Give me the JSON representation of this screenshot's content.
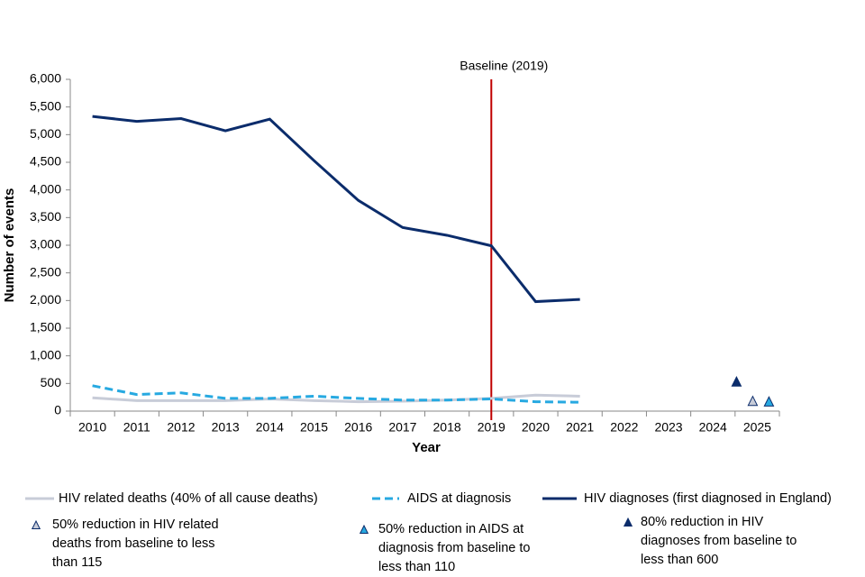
{
  "chart_data": {
    "type": "line",
    "categories": [
      "2010",
      "2011",
      "2012",
      "2013",
      "2014",
      "2015",
      "2016",
      "2017",
      "2018",
      "2019",
      "2020",
      "2021",
      "2022",
      "2023",
      "2024",
      "2025"
    ],
    "ylim": [
      0,
      6000
    ],
    "yticks": [
      0,
      500,
      {
        "value": 1000,
        "label": "1,000"
      },
      {
        "value": 1500,
        "label": "1,500"
      },
      {
        "value": 2000,
        "label": "2,000"
      },
      {
        "value": 2500,
        "label": "2,500"
      },
      {
        "value": 3000,
        "label": "3,000"
      },
      {
        "value": 3500,
        "label": "3,500"
      },
      {
        "value": 4000,
        "label": "4,000"
      },
      {
        "value": 4500,
        "label": "4,500"
      },
      {
        "value": 5000,
        "label": "5,000"
      },
      {
        "value": 5500,
        "label": "5,500"
      },
      {
        "value": 6000,
        "label": "6,000"
      }
    ],
    "y_label": "Number of events",
    "x_label": "Year",
    "baseline_label": "Baseline (2019)",
    "baseline_color": "#c00000",
    "series": [
      {
        "name": "HIV related deaths (40% of all cause deaths)",
        "color": "#c8ccd8",
        "style": "solid",
        "values": [
          240,
          190,
          190,
          190,
          220,
          190,
          170,
          180,
          200,
          230,
          290,
          270,
          null,
          null,
          null,
          null
        ]
      },
      {
        "name": "AIDS at diagnosis",
        "color": "#27a9e1",
        "style": "dashed",
        "values": [
          460,
          300,
          330,
          230,
          230,
          270,
          230,
          200,
          200,
          220,
          170,
          160,
          null,
          null,
          null,
          null
        ]
      },
      {
        "name": "HIV diagnoses (first diagnosed in England)",
        "color": "#0b2c6b",
        "style": "solid",
        "values": [
          5330,
          5240,
          5290,
          5070,
          5280,
          4530,
          3810,
          3320,
          3180,
          2990,
          1980,
          2020,
          null,
          null,
          null,
          null
        ]
      },
      {
        "name": "50% reduction in HIV related deaths from baseline to less than 115",
        "color": "#c8ccd8",
        "style": "marker",
        "values": [
          null,
          null,
          null,
          null,
          null,
          null,
          null,
          null,
          null,
          null,
          null,
          null,
          null,
          null,
          null,
          170
        ]
      },
      {
        "name": "50% reduction in AIDS at diagnosis from baseline to less than 110",
        "color": "#27a9e1",
        "style": "marker",
        "values": [
          null,
          null,
          null,
          null,
          null,
          null,
          null,
          null,
          null,
          null,
          null,
          null,
          null,
          null,
          null,
          160
        ]
      },
      {
        "name": "80% reduction in HIV diagnoses from baseline to less than 600",
        "color": "#0b2c6b",
        "style": "marker",
        "values": [
          null,
          null,
          null,
          null,
          null,
          null,
          null,
          null,
          null,
          null,
          null,
          null,
          null,
          null,
          null,
          520
        ]
      }
    ]
  }
}
